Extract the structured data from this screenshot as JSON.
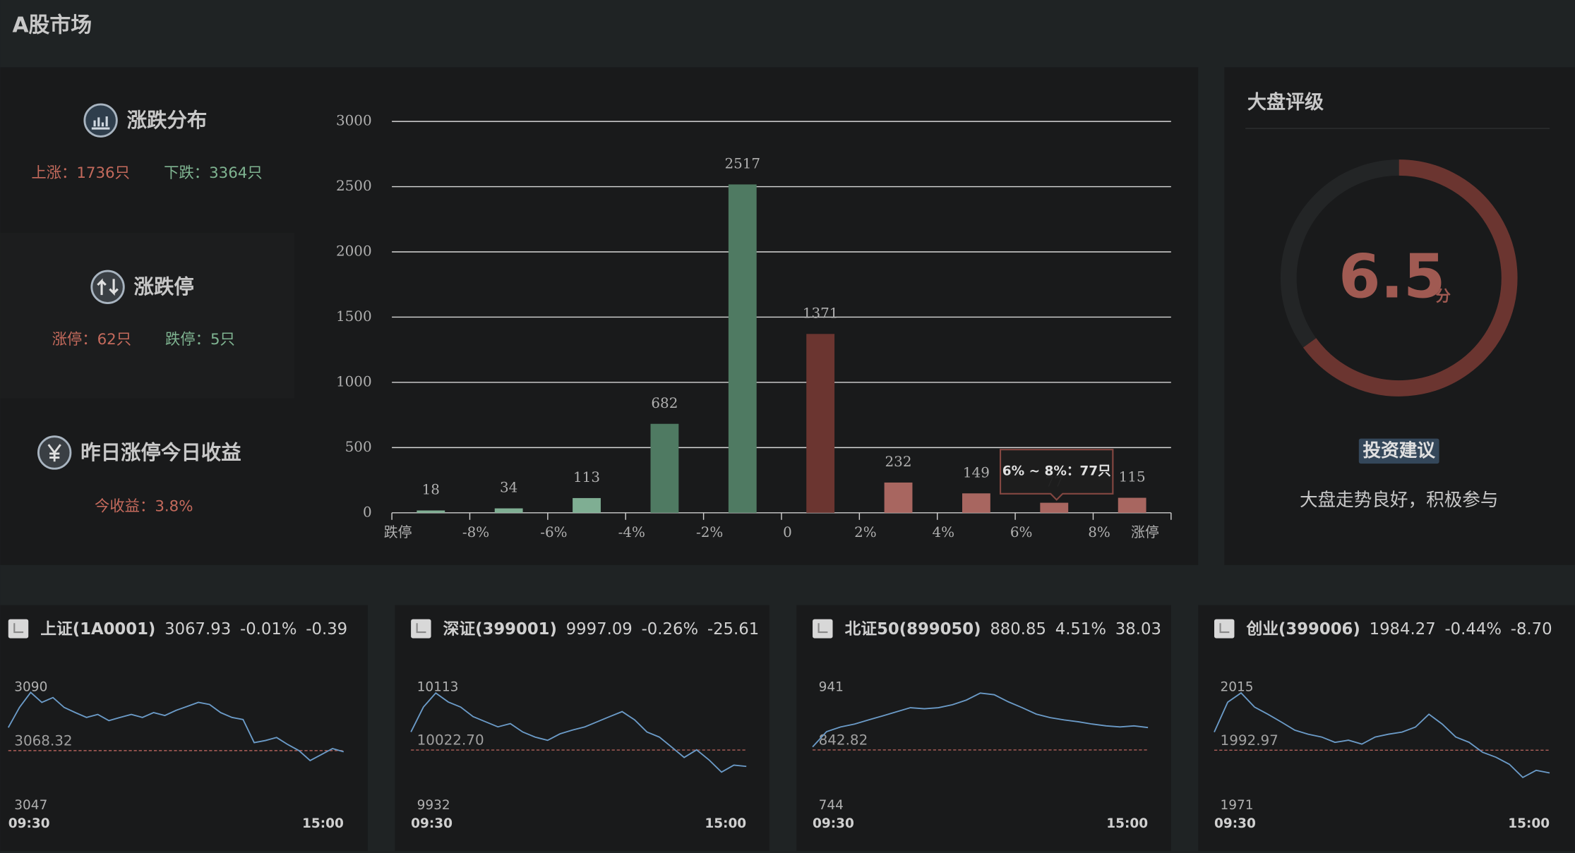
{
  "title": "A股市场",
  "stats": [
    {
      "title": "涨跌分布",
      "items": [
        "上涨：1736只",
        "下跌：3364只"
      ]
    },
    {
      "title": "涨跌停",
      "items": [
        "涨停：62只",
        "跌停：5只"
      ]
    },
    {
      "title": "昨日涨停今日收益",
      "items": [
        "今收益：3.8%"
      ]
    }
  ],
  "distribution": {
    "type": "bar",
    "bins": [
      "跌停",
      "-8%",
      "-6%",
      "-4%",
      "-2%",
      "0",
      "2%",
      "4%",
      "6%",
      "8%",
      "涨停"
    ],
    "values": [
      18,
      34,
      113,
      682,
      2517,
      1371,
      232,
      149,
      77,
      115
    ],
    "colors": [
      "#7fae93",
      "#7fae93",
      "#7fae93",
      "#4f7a62",
      "#4f7a62",
      "#6b3530",
      "#a86660",
      "#a86660",
      "#a86660",
      "#a86660"
    ],
    "ylim": [
      0,
      3000
    ],
    "yticks": [
      0,
      500,
      1000,
      1500,
      2000,
      2500,
      3000
    ],
    "grid": true,
    "tooltip": "6% ~ 8%：77只"
  },
  "rating": {
    "title": "大盘评级",
    "score": 6.5,
    "scale": [
      0,
      10
    ],
    "unit": "分",
    "advice_label": "投资建议",
    "advice": "大盘走势良好，积极参与",
    "color": "#6b3530"
  },
  "indices": [
    {
      "name": "上证(1A0001)",
      "price": "3067.93",
      "pct": "-0.01%",
      "change": "-0.39",
      "ylim": [
        3047,
        3090
      ],
      "ref": 3068.32,
      "times": [
        "09:30",
        "15:00"
      ],
      "values": [
        3076.9,
        3084.4,
        3090,
        3086.3,
        3088.1,
        3084.4,
        3082.5,
        3080.7,
        3081.8,
        3079.5,
        3080.7,
        3081.8,
        3080.7,
        3082.5,
        3081.4,
        3083.3,
        3084.8,
        3086.3,
        3085.5,
        3082.5,
        3080.7,
        3079.9,
        3071.3,
        3072.1,
        3073.2,
        3070.6,
        3068.3,
        3064.6,
        3066.8,
        3069.1,
        3067.9
      ]
    },
    {
      "name": "深证(399001)",
      "price": "9997.09",
      "pct": "-0.26%",
      "change": "-25.61",
      "ylim": [
        9932,
        10113
      ],
      "ref": {
        "value": 10022.7,
        "label": "10022.70"
      },
      "times": [
        "09:30",
        "15:00"
      ],
      "values": [
        10051,
        10090,
        10112,
        10098,
        10090,
        10075,
        10067,
        10059,
        10064,
        10051,
        10043,
        10038,
        10048,
        10054,
        10059,
        10067,
        10075,
        10083,
        10070,
        10051,
        10043,
        10027,
        10011,
        10023,
        10007,
        9988,
        9999,
        9997
      ]
    },
    {
      "name": "北证50(899050)",
      "price": "880.85",
      "pct": "4.51%",
      "change": "38.03",
      "ylim": [
        744,
        941
      ],
      "ref": 842.82,
      "times": [
        "09:30",
        "15:00"
      ],
      "values": [
        848,
        874,
        882,
        887,
        894,
        901,
        908,
        915,
        913,
        915,
        920,
        928,
        940,
        937,
        925,
        915,
        904,
        898,
        894,
        891,
        887,
        884,
        882,
        884,
        881
      ]
    },
    {
      "name": "创业(399006)",
      "price": "1984.27",
      "pct": "-0.44%",
      "change": "-8.70",
      "ylim": [
        1971,
        2015
      ],
      "ref": 1992.97,
      "times": [
        "09:30",
        "15:00"
      ],
      "values": [
        1999.9,
        2011.3,
        2014.8,
        2009.4,
        2006.7,
        2003.7,
        2000.6,
        1999.1,
        1998.0,
        1996.0,
        1996.8,
        1995.3,
        1998.0,
        1999.1,
        1999.9,
        2001.8,
        2006.7,
        2002.9,
        1998.0,
        1996.0,
        1992.2,
        1990.3,
        1987.6,
        1982.6,
        1985.3,
        1984.3
      ]
    }
  ]
}
